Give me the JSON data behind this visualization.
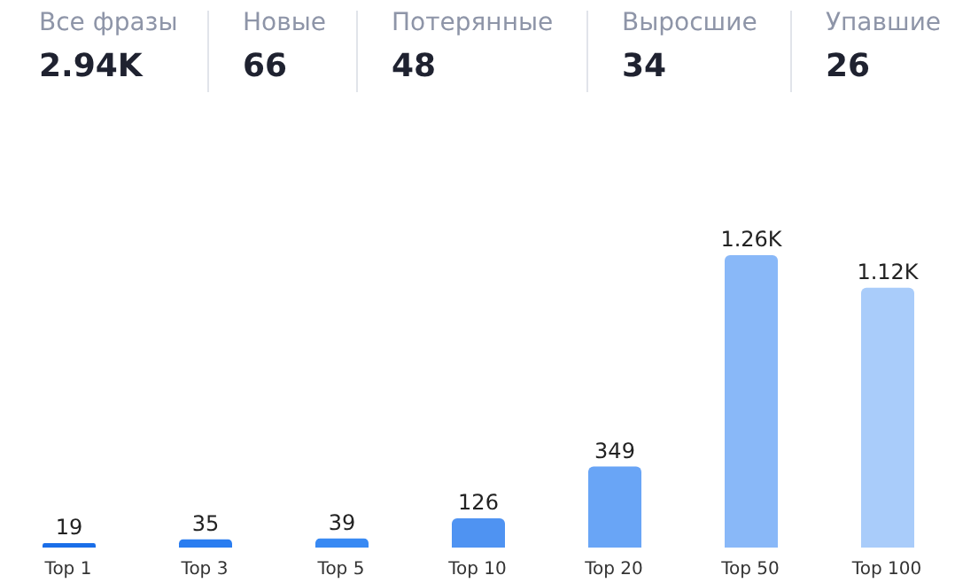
{
  "chart_data": [
    {
      "type": "other",
      "annotations": [
        "Все фразы",
        "2.94K",
        "Новые",
        "66",
        "Потерянные",
        "48",
        "Выросшие",
        "34",
        "Упавшие",
        "26"
      ]
    },
    {
      "type": "bar",
      "categories": [
        "Top 1",
        "Top 3",
        "Top 5",
        "Top 10",
        "Top 20",
        "Top 50",
        "Top 100"
      ],
      "values": [
        19,
        35,
        39,
        126,
        349,
        1260,
        1120
      ],
      "value_labels": [
        "19",
        "35",
        "39",
        "126",
        "349",
        "1.26K",
        "1.12K"
      ],
      "colors": [
        "#1a6ee8",
        "#2a7df0",
        "#3889f3",
        "#4f93f2",
        "#69a5f6",
        "#89b8f8",
        "#a9ccfa"
      ]
    }
  ]
}
